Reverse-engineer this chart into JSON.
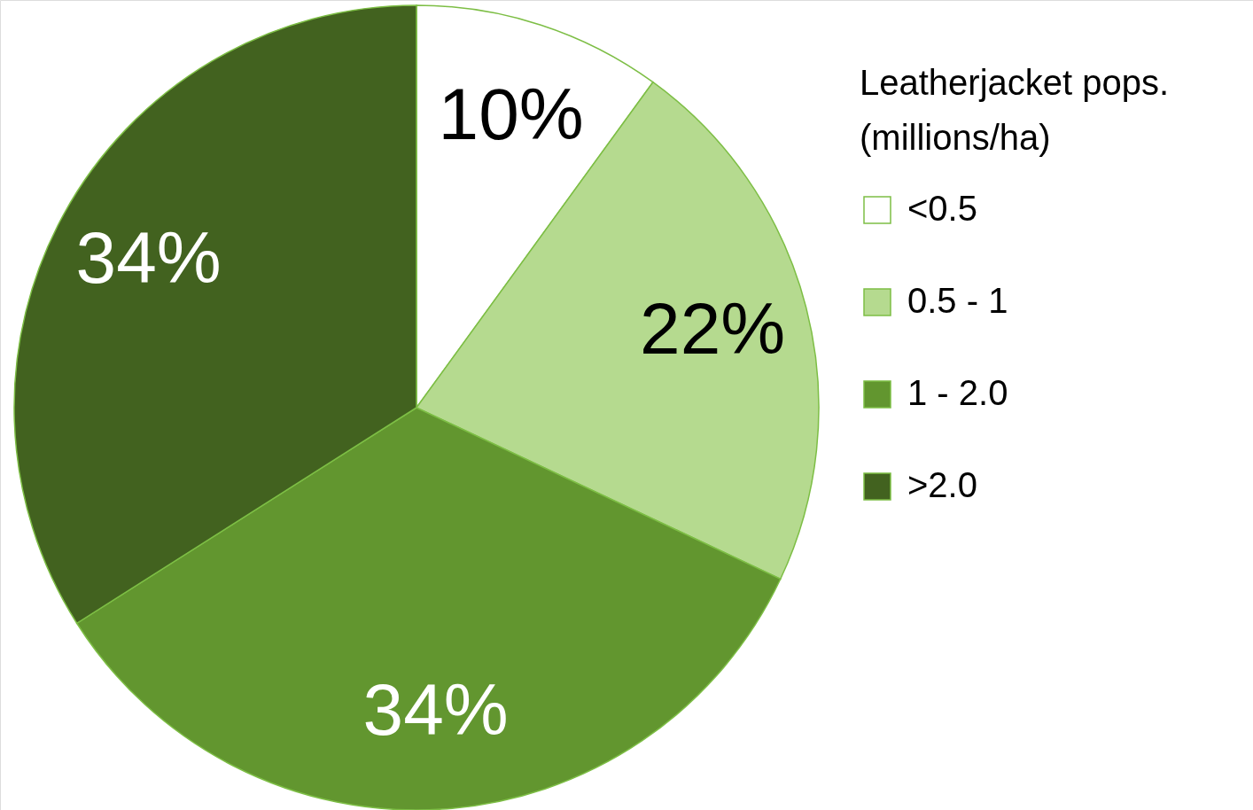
{
  "chart_data": {
    "type": "pie",
    "legend_title": "Leatherjacket pops.\n(millions/ha)",
    "categories": [
      "<0.5",
      "0.5 - 1",
      "1 - 2.0",
      ">2.0"
    ],
    "values": [
      10,
      22,
      34,
      34
    ],
    "colors": [
      "#ffffff",
      "#b5da8f",
      "#62962f",
      "#42621f"
    ],
    "value_labels": [
      "10%",
      "22%",
      "34%",
      "34%"
    ],
    "legend": "right"
  }
}
